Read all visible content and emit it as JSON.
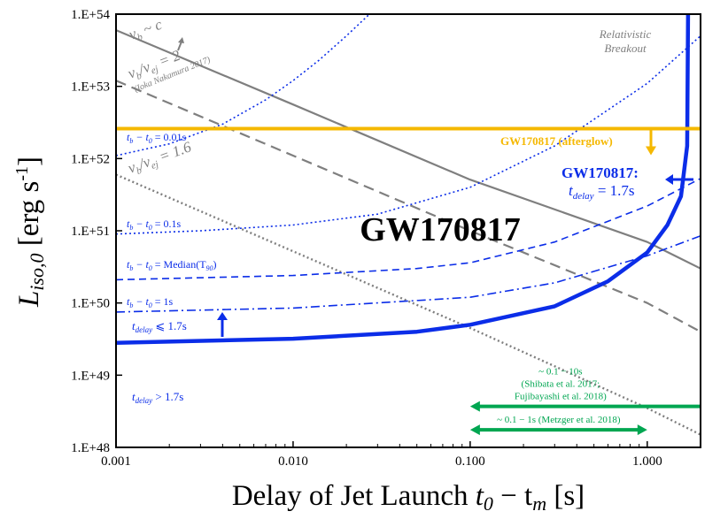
{
  "chart_data": {
    "type": "line",
    "title": "GW170817",
    "xlabel_main": "Delay of Jet Launch ",
    "xlabel_math": "t",
    "xlabel_sub0": "0",
    "xlabel_minus": " − t",
    "xlabel_subm": "m",
    "xlabel_unit": " [s]",
    "ylabel_L": "L",
    "ylabel_sub": "iso,0",
    "ylabel_unit": " [erg s",
    "ylabel_exp": "-1",
    "ylabel_close": "]",
    "xscale": "log",
    "yscale": "log",
    "xlim": [
      0.001,
      2.0
    ],
    "ylim": [
      1e+48,
      1e+54
    ],
    "x_ticks": [
      {
        "value": 0.001,
        "label": "0.001"
      },
      {
        "value": 0.01,
        "label": "0.010"
      },
      {
        "value": 0.1,
        "label": "0.100"
      },
      {
        "value": 1,
        "label": "1.000"
      }
    ],
    "y_ticks": [
      {
        "value": 1e+48,
        "label": "1.E+48"
      },
      {
        "value": 1e+49,
        "label": "1.E+49"
      },
      {
        "value": 1e+50,
        "label": "1.E+50"
      },
      {
        "value": 1e+51,
        "label": "1.E+51"
      },
      {
        "value": 1e+52,
        "label": "1.E+52"
      },
      {
        "value": 1e+53,
        "label": "1.E+53"
      },
      {
        "value": 1e+54,
        "label": "1.E+54"
      }
    ],
    "colors": {
      "gray": "#7f7f7f",
      "blue": "#0b2de8",
      "orange": "#f5b800",
      "green": "#00a651"
    },
    "series": [
      {
        "name": "v_b ~ c",
        "style": "solid",
        "color": "gray",
        "points": [
          [
            0.001,
            6e+53
          ],
          [
            0.01,
            5.6e+52
          ],
          [
            0.1,
            5.1e+51
          ],
          [
            1.0,
            7e+50
          ],
          [
            2.0,
            3e+50
          ]
        ]
      },
      {
        "name": "v_b / v_ej = 2",
        "style": "dashed",
        "color": "gray",
        "points": [
          [
            0.001,
            1.2e+53
          ],
          [
            0.01,
            1.1e+52
          ],
          [
            0.1,
            1e+51
          ],
          [
            1.0,
            1e+50
          ],
          [
            2.0,
            4e+49
          ]
        ]
      },
      {
        "name": "v_b / v_ej = 1.6",
        "style": "dotted",
        "color": "gray",
        "points": [
          [
            0.001,
            6e+51
          ],
          [
            0.01,
            5.2e+50
          ],
          [
            0.1,
            4.5e+49
          ],
          [
            1.0,
            3.5e+48
          ],
          [
            2.0,
            1.5e+48
          ]
        ]
      },
      {
        "name": "t_b - t_0 = 0.01s",
        "style": "dotted",
        "color": "blue",
        "points": [
          [
            0.001,
            1.1e+52
          ],
          [
            0.002,
            1.6e+52
          ],
          [
            0.004,
            3e+52
          ],
          [
            0.007,
            6.5e+52
          ],
          [
            0.01,
            1.2e+53
          ],
          [
            0.014,
            2.3e+53
          ],
          [
            0.02,
            5e+53
          ],
          [
            0.027,
            1e+54
          ]
        ]
      },
      {
        "name": "t_b - t_0 = 0.1s",
        "style": "dotted",
        "color": "blue",
        "points": [
          [
            0.001,
            9e+50
          ],
          [
            0.003,
            1e+51
          ],
          [
            0.01,
            1.2e+51
          ],
          [
            0.03,
            1.7e+51
          ],
          [
            0.1,
            4e+51
          ],
          [
            0.3,
            1.5e+52
          ],
          [
            1.0,
            1.1e+53
          ],
          [
            2.0,
            5e+53
          ]
        ]
      },
      {
        "name": "t_b - t_0 = Median(T90)",
        "style": "dashed",
        "color": "blue",
        "points": [
          [
            0.001,
            2.1e+50
          ],
          [
            0.01,
            2.4e+50
          ],
          [
            0.05,
            3e+50
          ],
          [
            0.1,
            3.6e+50
          ],
          [
            0.3,
            7e+50
          ],
          [
            1.0,
            2.2e+51
          ],
          [
            2.0,
            5.3e+51
          ]
        ]
      },
      {
        "name": "t_b - t_0 = 1s",
        "style": "dashdot",
        "color": "blue",
        "points": [
          [
            0.001,
            7.5e+49
          ],
          [
            0.01,
            8.5e+49
          ],
          [
            0.1,
            1.2e+50
          ],
          [
            0.3,
            1.9e+50
          ],
          [
            1.0,
            4.5e+50
          ],
          [
            2.0,
            8.5e+50
          ]
        ]
      },
      {
        "name": "t_delay <= 1.7s",
        "style": "thick",
        "color": "blue",
        "points": [
          [
            0.001,
            2.8e+49
          ],
          [
            0.01,
            3.2e+49
          ],
          [
            0.05,
            4e+49
          ],
          [
            0.1,
            5e+49
          ],
          [
            0.3,
            9e+49
          ],
          [
            0.6,
            2e+50
          ],
          [
            1.0,
            5e+50
          ],
          [
            1.3,
            1.2e+51
          ],
          [
            1.55,
            3e+51
          ],
          [
            1.68,
            1.5e+52
          ],
          [
            1.7,
            1e+54
          ]
        ]
      }
    ],
    "gw_constraint": {
      "label": "GW170817 (afterglow)",
      "value": 2.6e+52
    },
    "arrows_green": [
      {
        "label_lines": [
          "~ 0.1 − 10s",
          "(Shibata et al. 2017;",
          "Fujibayashi et al. 2018)"
        ],
        "from": 0.1,
        "to": 2.0,
        "y": 3.7e+48,
        "arrow_left": true,
        "arrow_right": false
      },
      {
        "label_lines": [
          "~ 0.1 − 1s (Metzger et al. 2018)"
        ],
        "from": 0.1,
        "to": 1.0,
        "y": 1.75e+48,
        "arrow_left": true,
        "arrow_right": true
      }
    ],
    "annotations": {
      "vb_c_v": "v",
      "vb_c_b": "b",
      "vb_c_rest": " ~ c",
      "vb2_v": "v",
      "vb2_b": "b",
      "vb2_mid": "/v",
      "vb2_ej": "ej",
      "vb2_rest": " = 2",
      "vb2_ref": "(Ioka Nakamura 2017)",
      "vb16_v": "v",
      "vb16_b": "b",
      "vb16_mid": "/v",
      "vb16_ej": "ej",
      "vb16_rest": " = 1.6",
      "relativistic_1": "Relativistic",
      "relativistic_2": "Breakout",
      "tb001_a": "t",
      "tb001_b": "b",
      "tb001_c": " − t",
      "tb001_d": "0",
      "tb001_e": " = 0.01s",
      "tb01_a": "t",
      "tb01_b": "b",
      "tb01_c": " − t",
      "tb01_d": "0",
      "tb01_e": " = 0.1s",
      "tbmed_a": "t",
      "tbmed_b": "b",
      "tbmed_c": " − t",
      "tbmed_d": "0",
      "tbmed_e": " = Median(T",
      "tbmed_f": "90",
      "tbmed_g": ")",
      "tb1_a": "t",
      "tb1_b": "b",
      "tb1_c": " − t",
      "tb1_d": "0",
      "tb1_e": " = 1s",
      "tdle_a": "t",
      "tdle_b": "delay",
      "tdle_c": " ⩽ 1.7s",
      "tdgt_a": "t",
      "tdgt_b": "delay",
      "tdgt_c": " > 1.7s",
      "gw_label_1": "GW170817:",
      "gw_td_a": "t",
      "gw_td_b": "delay",
      "gw_td_c": " = 1.7s"
    }
  }
}
